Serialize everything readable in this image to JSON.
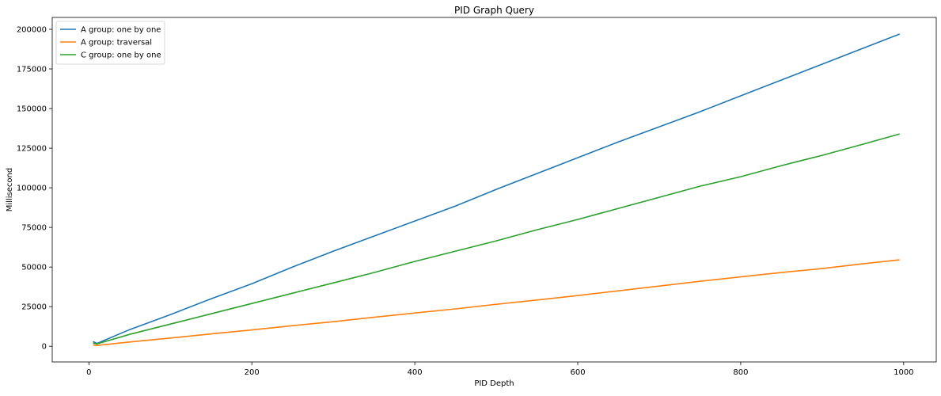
{
  "chart_data": {
    "type": "line",
    "title": "PID Graph Query",
    "xlabel": "PID Depth",
    "ylabel": "Millisecond",
    "xlim": [
      -45,
      1040
    ],
    "ylim": [
      -9900,
      207500
    ],
    "xticks": [
      0,
      200,
      400,
      600,
      800,
      1000
    ],
    "yticks": [
      0,
      25000,
      50000,
      75000,
      100000,
      125000,
      150000,
      175000,
      200000
    ],
    "grid": false,
    "legend": "top-left",
    "series": [
      {
        "name": "A group: one by one",
        "color": "#1f77b4",
        "x": [
          5,
          10,
          50,
          100,
          150,
          200,
          250,
          300,
          350,
          400,
          450,
          500,
          550,
          600,
          650,
          700,
          750,
          800,
          850,
          900,
          950,
          995
        ],
        "y": [
          3000,
          1800,
          10500,
          20000,
          30000,
          39500,
          50000,
          60000,
          69500,
          79000,
          88500,
          99000,
          109000,
          119000,
          129000,
          138500,
          148000,
          158000,
          168000,
          178000,
          188000,
          197000
        ]
      },
      {
        "name": "A group: traversal",
        "color": "#ff7f0e",
        "x": [
          5,
          10,
          50,
          100,
          150,
          200,
          250,
          300,
          350,
          400,
          450,
          500,
          550,
          600,
          650,
          700,
          750,
          800,
          850,
          900,
          950,
          995
        ],
        "y": [
          800,
          500,
          2700,
          5200,
          7800,
          10300,
          13000,
          15500,
          18300,
          21000,
          23600,
          26500,
          29200,
          32000,
          35000,
          38000,
          41000,
          43800,
          46500,
          49000,
          52000,
          54500
        ]
      },
      {
        "name": "C group: one by one",
        "color": "#2ca02c",
        "x": [
          5,
          10,
          50,
          100,
          150,
          200,
          250,
          300,
          350,
          400,
          450,
          500,
          550,
          600,
          650,
          700,
          750,
          800,
          850,
          900,
          950,
          995
        ],
        "y": [
          2000,
          1500,
          7500,
          14000,
          20500,
          27000,
          33500,
          40000,
          46500,
          53500,
          60000,
          66500,
          73500,
          80000,
          87000,
          94000,
          101000,
          107000,
          114000,
          120500,
          127500,
          134000
        ]
      }
    ]
  }
}
